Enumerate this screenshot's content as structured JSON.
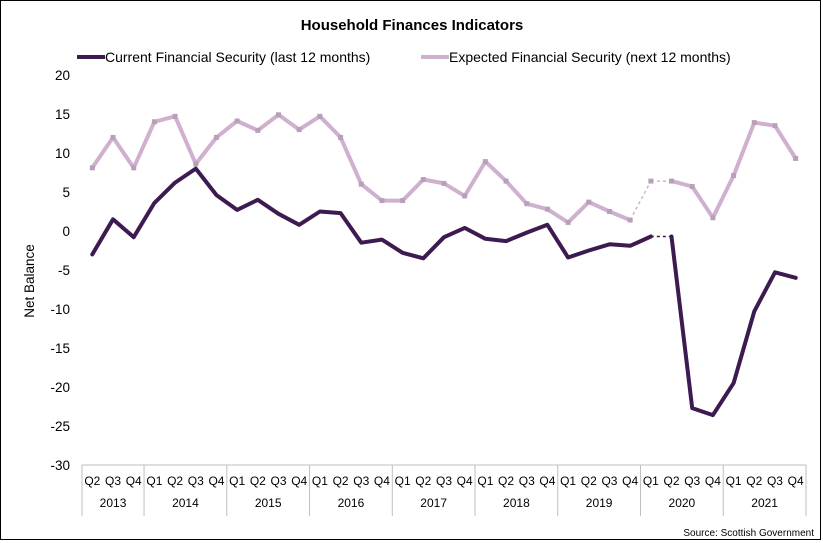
{
  "chart_data": {
    "type": "line",
    "title": "Household Finances Indicators",
    "ylabel": "Net Balance",
    "xlabel": "",
    "ylim": [
      -30,
      20
    ],
    "yticks": [
      20,
      15,
      10,
      5,
      0,
      -5,
      -10,
      -15,
      -20,
      -25,
      -30
    ],
    "grid": false,
    "legend_position": "top",
    "source": "Source: Scottish Government",
    "quarters": [
      "Q2",
      "Q3",
      "Q4",
      "Q1",
      "Q2",
      "Q3",
      "Q4",
      "Q1",
      "Q2",
      "Q3",
      "Q4",
      "Q1",
      "Q2",
      "Q3",
      "Q4",
      "Q1",
      "Q2",
      "Q3",
      "Q4",
      "Q1",
      "Q2",
      "Q3",
      "Q4",
      "Q1",
      "Q2",
      "Q3",
      "Q4",
      "Q1",
      "Q2",
      "Q3",
      "Q4",
      "Q1",
      "Q2",
      "Q3",
      "Q4"
    ],
    "years": [
      {
        "label": "2013",
        "start": 0,
        "end": 2
      },
      {
        "label": "2014",
        "start": 3,
        "end": 6
      },
      {
        "label": "2015",
        "start": 7,
        "end": 10
      },
      {
        "label": "2016",
        "start": 11,
        "end": 14
      },
      {
        "label": "2017",
        "start": 15,
        "end": 18
      },
      {
        "label": "2018",
        "start": 19,
        "end": 22
      },
      {
        "label": "2019",
        "start": 23,
        "end": 26
      },
      {
        "label": "2020",
        "start": 27,
        "end": 30
      },
      {
        "label": "2021",
        "start": 31,
        "end": 34
      }
    ],
    "series": [
      {
        "name": "Current Financial Security (last 12 months)",
        "color": "#3d1a4f",
        "values": [
          -3.0,
          1.5,
          -0.8,
          3.6,
          6.2,
          8.0,
          4.6,
          2.7,
          4.0,
          2.2,
          0.8,
          2.5,
          2.3,
          -1.5,
          -1.1,
          -2.8,
          -3.5,
          -0.8,
          0.4,
          -1.0,
          -1.3,
          -0.2,
          0.8,
          -3.4,
          -2.5,
          -1.7,
          -1.9,
          -0.7,
          -0.7,
          -22.7,
          -23.6,
          -19.5,
          -10.3,
          -5.3,
          -6.0
        ],
        "gaps": [
          [
            27,
            28
          ]
        ]
      },
      {
        "name": "Expected Financial Security (next 12 months)",
        "color": "#cfb1cf",
        "values": [
          8.1,
          12.0,
          8.1,
          14.0,
          14.7,
          8.6,
          12.0,
          14.1,
          12.9,
          14.9,
          13.0,
          14.7,
          12.0,
          6.0,
          3.9,
          3.9,
          6.6,
          6.1,
          4.5,
          8.9,
          6.4,
          3.5,
          2.8,
          1.1,
          3.7,
          2.5,
          1.4,
          6.4,
          6.4,
          5.7,
          1.7,
          7.1,
          13.9,
          13.5,
          9.3
        ],
        "gaps": [
          [
            26,
            27
          ],
          [
            27,
            28
          ]
        ]
      }
    ]
  }
}
